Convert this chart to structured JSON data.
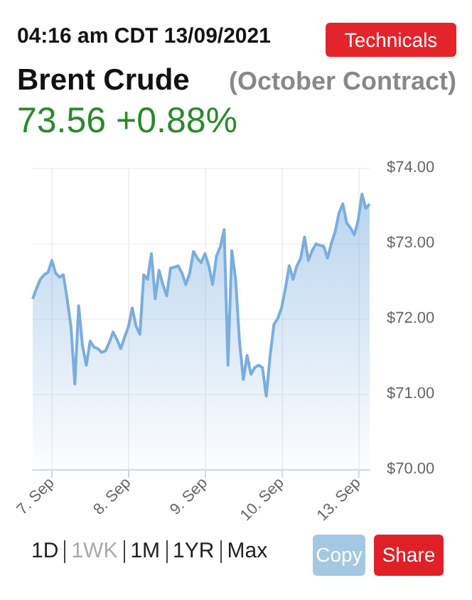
{
  "chart_data": {
    "type": "area",
    "title": "Brent Crude",
    "subtitle": "(October Contract)",
    "annotations": [
      "04:16 am CDT 13/09/2021",
      "73.56 +0.88%",
      "Technicals",
      "1D",
      "1WK",
      "1M",
      "1YR",
      "Max",
      "Copy",
      "Share"
    ],
    "categories": [
      null,
      null,
      null,
      null,
      null,
      "7. Sep",
      null,
      null,
      null,
      null,
      null,
      null,
      null,
      null,
      null,
      null,
      null,
      null,
      null,
      null,
      null,
      null,
      null,
      null,
      null,
      "8. Sep",
      null,
      null,
      null,
      null,
      null,
      null,
      null,
      null,
      null,
      null,
      null,
      null,
      null,
      null,
      null,
      null,
      null,
      null,
      null,
      "9. Sep",
      null,
      null,
      null,
      null,
      null,
      null,
      null,
      null,
      null,
      null,
      null,
      null,
      null,
      null,
      null,
      null,
      null,
      null,
      null,
      "10. Sep",
      null,
      null,
      null,
      null,
      null,
      null,
      null,
      null,
      null,
      null,
      null,
      null,
      null,
      null,
      null,
      null,
      null,
      null,
      null,
      "13. Sep",
      null,
      null,
      null
    ],
    "series": [
      {
        "color": "#7aade0",
        "values": [
          72.26,
          72.4,
          72.52,
          72.58,
          72.61,
          72.77,
          72.6,
          72.55,
          72.58,
          72.26,
          71.89,
          71.13,
          72.17,
          71.64,
          71.38,
          71.7,
          71.62,
          71.6,
          71.55,
          71.57,
          71.68,
          71.82,
          71.72,
          71.6,
          71.75,
          71.89,
          72.14,
          71.9,
          71.79,
          72.58,
          72.52,
          72.86,
          72.26,
          72.64,
          72.45,
          72.3,
          72.67,
          72.68,
          72.7,
          72.6,
          72.45,
          72.6,
          72.89,
          72.8,
          72.74,
          72.86,
          72.7,
          72.45,
          72.83,
          72.95,
          73.18,
          71.38,
          72.9,
          72.52,
          71.7,
          71.19,
          71.51,
          71.26,
          71.35,
          71.38,
          71.35,
          70.97,
          71.5,
          71.92,
          72.0,
          72.14,
          72.4,
          72.7,
          72.52,
          72.7,
          72.8,
          73.08,
          72.77,
          72.9,
          72.99,
          72.97,
          72.96,
          72.8,
          73.0,
          73.15,
          73.4,
          73.52,
          73.27,
          73.2,
          73.11,
          73.3,
          73.65,
          73.46,
          73.52
        ]
      }
    ],
    "ylim": [
      70,
      74
    ],
    "yticks": [
      {
        "value": 70,
        "label": "$70.00"
      },
      {
        "value": 71,
        "label": "$71.00"
      },
      {
        "value": 72,
        "label": "$72.00"
      },
      {
        "value": 73,
        "label": "$73.00"
      },
      {
        "value": 74,
        "label": "$74.00"
      }
    ],
    "grid": true,
    "marker": "none"
  }
}
